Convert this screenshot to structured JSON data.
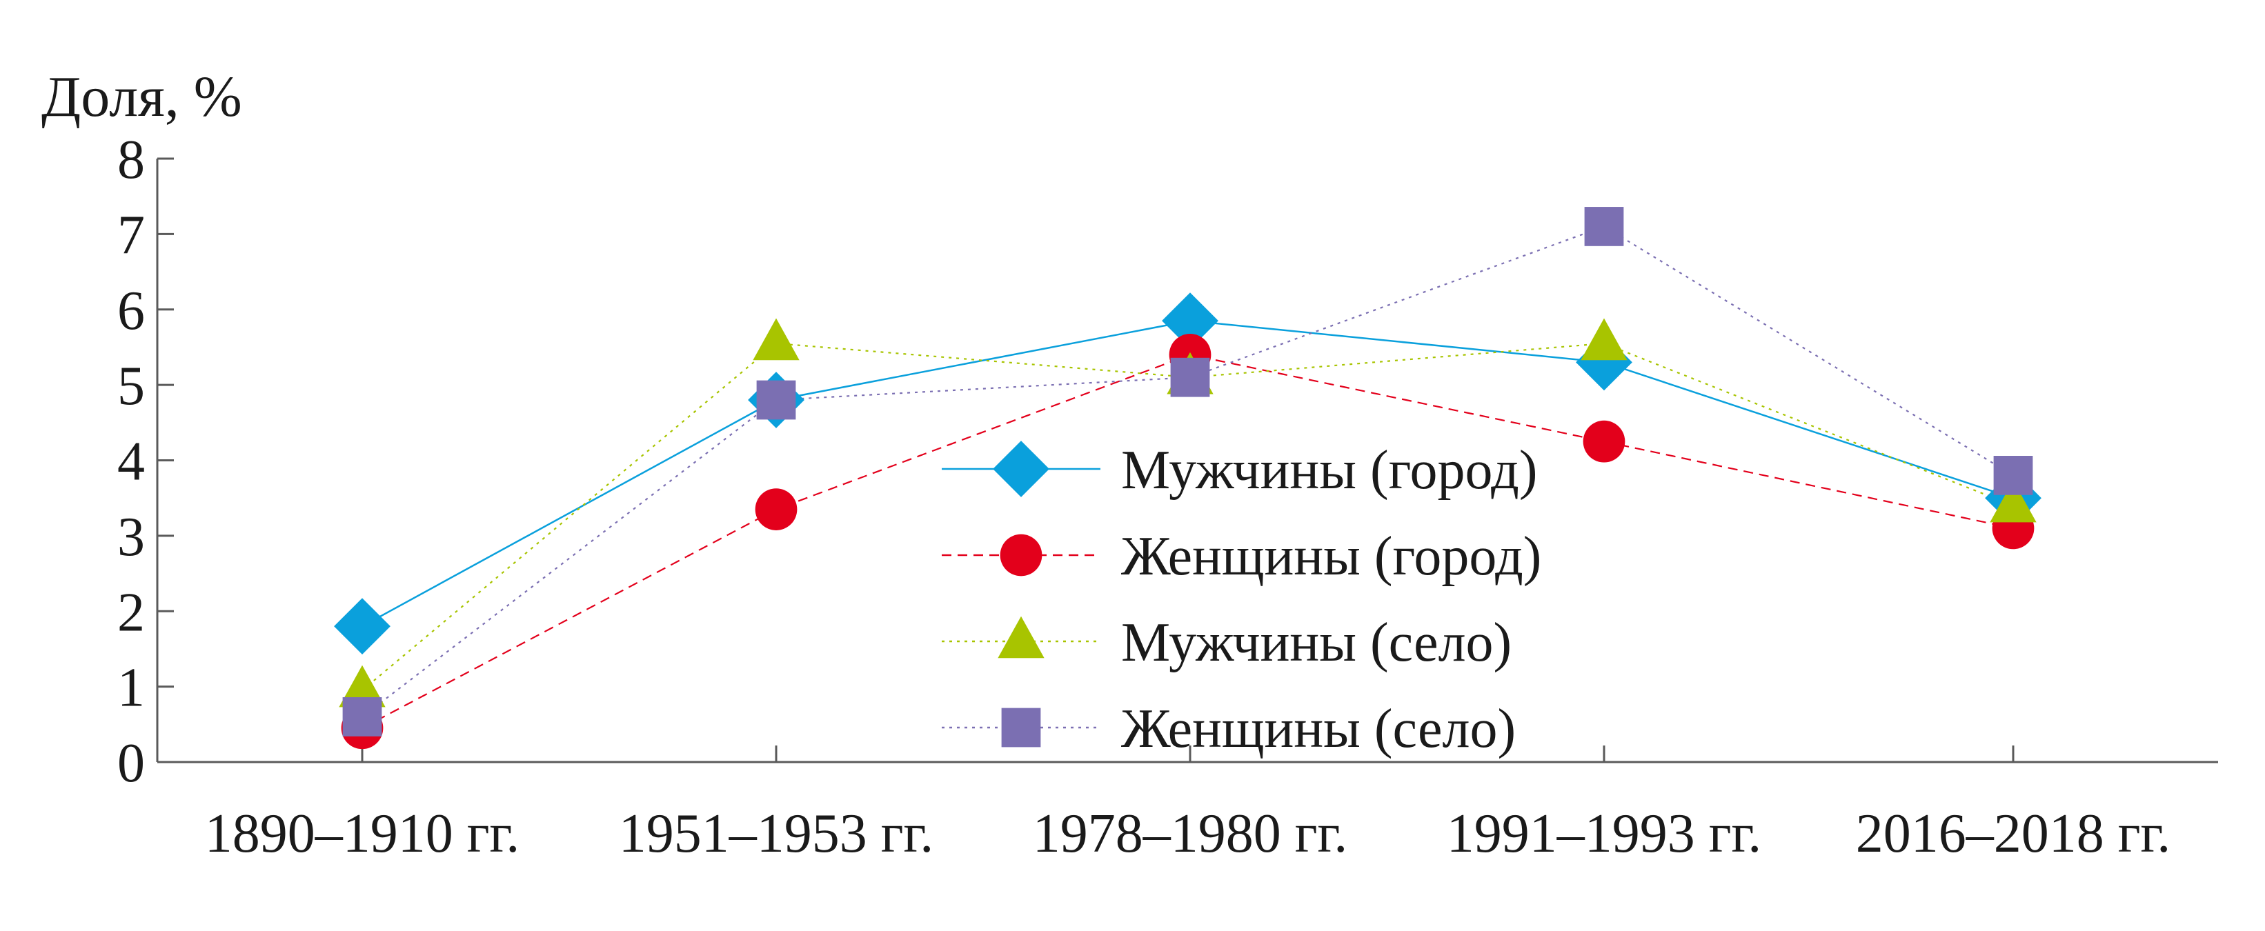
{
  "chart_data": {
    "type": "line",
    "title": "",
    "xlabel": "",
    "ylabel": "Доля, %",
    "ylim": [
      0,
      8
    ],
    "yticks": [
      "0",
      "1",
      "2",
      "3",
      "4",
      "5",
      "6",
      "7",
      "8"
    ],
    "categories": [
      "1890–1910 гг.",
      "1951–1953 гг.",
      "1978–1980 гг.",
      "1991–1993 гг.",
      "2016–2018 гг."
    ],
    "grid": false,
    "legend_position": "center",
    "series": [
      {
        "name": "Мужчины (город)",
        "marker": "diamond",
        "line_style": "solid",
        "color": "#0aa0dc",
        "values": [
          1.8,
          4.8,
          5.85,
          5.3,
          3.5
        ]
      },
      {
        "name": "Женщины (город)",
        "marker": "circle",
        "line_style": "dashed",
        "color": "#e3001b",
        "values": [
          0.45,
          3.35,
          5.4,
          4.25,
          3.1
        ]
      },
      {
        "name": "Мужчины (село)",
        "marker": "triangle",
        "line_style": "dotted",
        "color": "#a8c400",
        "values": [
          0.95,
          5.55,
          5.1,
          5.55,
          3.4
        ]
      },
      {
        "name": "Женщины (село)",
        "marker": "square",
        "line_style": "dotted",
        "color": "#7b6fb2",
        "values": [
          0.6,
          4.8,
          5.1,
          7.1,
          3.8
        ]
      }
    ]
  }
}
